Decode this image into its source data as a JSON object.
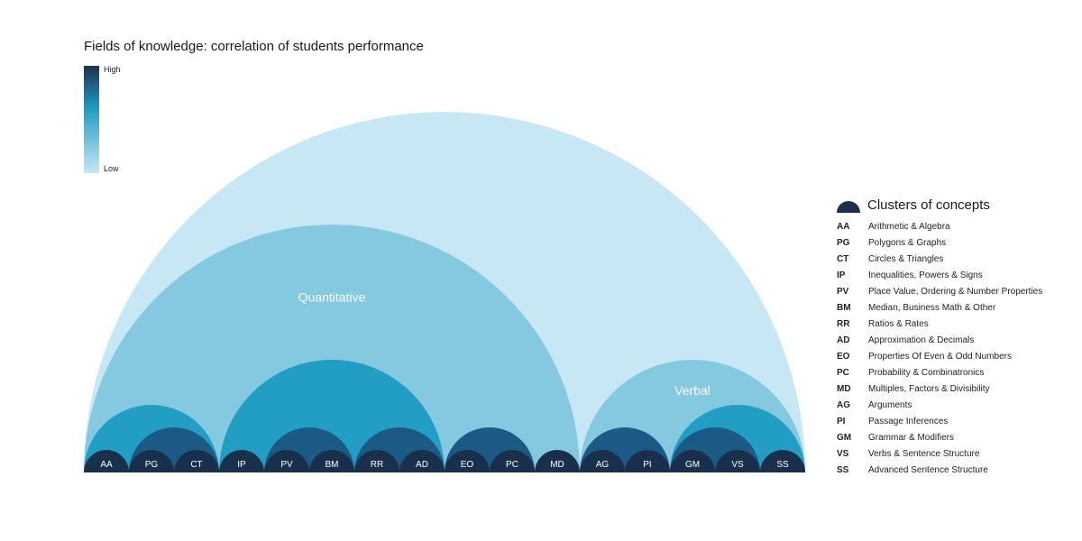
{
  "title": "Fields of knowledge: correlation of students performance",
  "colors": {
    "level0": "#c7e7f4",
    "level1": "#85c9e0",
    "level2": "#229dc3",
    "level3": "#1b5a84",
    "level4": "#19304c",
    "label_light": "#ffffff"
  },
  "scale": {
    "high": "High",
    "low": "Low"
  },
  "legend": {
    "title": "Clusters of concepts",
    "items": [
      {
        "abbr": "AA",
        "name": "Arithmetic & Algebra"
      },
      {
        "abbr": "PG",
        "name": "Polygons & Graphs"
      },
      {
        "abbr": "CT",
        "name": "Circles & Triangles"
      },
      {
        "abbr": "IP",
        "name": "Inequalities, Powers & Signs"
      },
      {
        "abbr": "PV",
        "name": "Place Value, Ordering & Number Properties"
      },
      {
        "abbr": "BM",
        "name": "Median, Business Math & Other"
      },
      {
        "abbr": "RR",
        "name": "Ratios & Rates"
      },
      {
        "abbr": "AD",
        "name": "Approximation & Decimals"
      },
      {
        "abbr": "EO",
        "name": "Properties Of Even & Odd Numbers"
      },
      {
        "abbr": "PC",
        "name": "Probability & Combinatronics"
      },
      {
        "abbr": "MD",
        "name": "Multiples, Factors & Divisibility"
      },
      {
        "abbr": "AG",
        "name": "Arguments"
      },
      {
        "abbr": "PI",
        "name": "Passage Inferences"
      },
      {
        "abbr": "GM",
        "name": "Grammar & Modifiers"
      },
      {
        "abbr": "VS",
        "name": "Verbs & Sentence Structure"
      },
      {
        "abbr": "SS",
        "name": "Advanced Sentence Structure"
      }
    ]
  },
  "chart_data": {
    "type": "hierarchical-semicircle",
    "title": "Fields of knowledge: correlation of students performance",
    "leaves": [
      "AA",
      "PG",
      "CT",
      "IP",
      "PV",
      "BM",
      "RR",
      "AD",
      "EO",
      "PC",
      "MD",
      "AG",
      "PI",
      "GM",
      "VS",
      "SS"
    ],
    "arcs": [
      {
        "start": 0,
        "end": 15,
        "level": 0,
        "label": ""
      },
      {
        "start": 0,
        "end": 10,
        "level": 1,
        "label": "Quantitative"
      },
      {
        "start": 11,
        "end": 15,
        "level": 1,
        "label": "Verbal"
      },
      {
        "start": 0,
        "end": 2,
        "level": 2,
        "label": ""
      },
      {
        "start": 3,
        "end": 7,
        "level": 2,
        "label": ""
      },
      {
        "start": 8,
        "end": 9,
        "level": 2,
        "label": ""
      },
      {
        "start": 13,
        "end": 15,
        "level": 2,
        "label": ""
      },
      {
        "start": 1,
        "end": 2,
        "level": 3,
        "label": ""
      },
      {
        "start": 4,
        "end": 5,
        "level": 3,
        "label": ""
      },
      {
        "start": 6,
        "end": 7,
        "level": 3,
        "label": ""
      },
      {
        "start": 8,
        "end": 9,
        "level": 3,
        "label": ""
      },
      {
        "start": 11,
        "end": 12,
        "level": 3,
        "label": ""
      },
      {
        "start": 13,
        "end": 14,
        "level": 3,
        "label": ""
      }
    ]
  }
}
